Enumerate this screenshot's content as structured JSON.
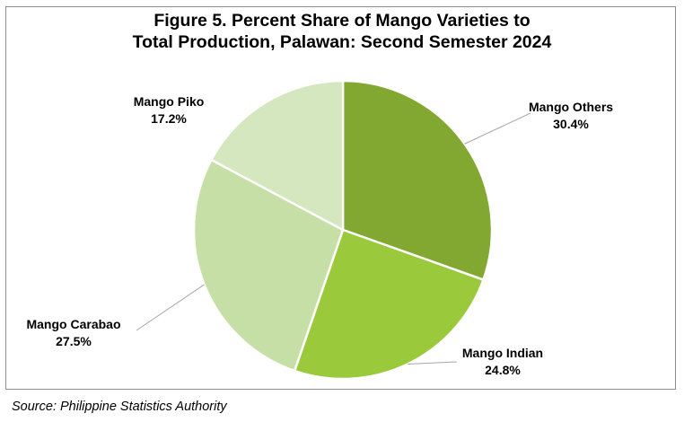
{
  "chart_data": {
    "type": "pie",
    "title_lines": [
      "Figure 5. Percent Share of Mango Varieties to",
      "Total Production, Palawan: Second Semester 2024"
    ],
    "slices": [
      {
        "name": "Mango Others",
        "value": 30.4,
        "label": "30.4%",
        "color": "#82a832"
      },
      {
        "name": "Mango Indian",
        "value": 24.8,
        "label": "24.8%",
        "color": "#9bc93c"
      },
      {
        "name": "Mango Carabao",
        "value": 27.5,
        "label": "27.5%",
        "color": "#c5dfa6"
      },
      {
        "name": "Mango Piko",
        "value": 17.2,
        "label": "17.2%",
        "color": "#d4e7bf"
      }
    ],
    "start": "12 o'clock",
    "direction": "clockwise",
    "slice_border_color": "#ffffff",
    "leader_line_color": "#a6a6a6"
  },
  "source": "Source: Philippine Statistics Authority"
}
